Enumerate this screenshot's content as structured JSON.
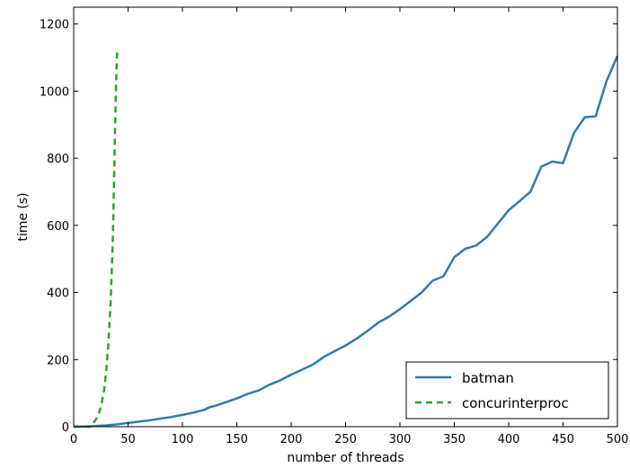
{
  "chart_data": {
    "type": "line",
    "title": "",
    "xlabel": "number of threads",
    "ylabel": "time (s)",
    "xlim": [
      0,
      500
    ],
    "ylim": [
      0,
      1250
    ],
    "xticks": [
      0,
      50,
      100,
      150,
      200,
      250,
      300,
      350,
      400,
      450,
      500
    ],
    "yticks": [
      0,
      200,
      400,
      600,
      800,
      1000,
      1200
    ],
    "grid": false,
    "legend": {
      "position": "bottom-right",
      "entries": [
        "batman",
        "concurinterproc"
      ]
    },
    "colors": {
      "batman": "#2c7bb6",
      "concurinterproc": "#2ca02c"
    },
    "series": [
      {
        "name": "batman",
        "style": "solid",
        "x": [
          0,
          10,
          20,
          30,
          40,
          50,
          60,
          70,
          80,
          90,
          100,
          110,
          120,
          125,
          130,
          140,
          150,
          160,
          170,
          180,
          190,
          200,
          210,
          220,
          230,
          240,
          250,
          260,
          270,
          280,
          290,
          300,
          310,
          320,
          330,
          340,
          350,
          360,
          370,
          380,
          390,
          400,
          410,
          420,
          430,
          440,
          450,
          460,
          470,
          480,
          490,
          500
        ],
        "y": [
          0,
          0.5,
          2,
          4,
          7,
          11,
          15,
          19,
          24,
          29,
          35,
          42,
          50,
          58,
          62,
          73,
          84,
          98,
          108,
          125,
          138,
          155,
          170,
          185,
          208,
          225,
          242,
          262,
          285,
          310,
          328,
          350,
          375,
          400,
          435,
          448,
          505,
          530,
          540,
          565,
          605,
          645,
          672,
          700,
          775,
          790,
          785,
          875,
          922,
          925,
          1030,
          1105
        ]
      },
      {
        "name": "concurinterproc",
        "style": "dashed",
        "x": [
          0,
          10,
          15,
          18,
          22,
          25,
          28,
          30,
          32,
          34,
          36,
          37,
          38,
          39,
          40
        ],
        "y": [
          0,
          0,
          0,
          10,
          30,
          60,
          110,
          170,
          250,
          370,
          560,
          720,
          880,
          1030,
          1120
        ]
      }
    ]
  }
}
